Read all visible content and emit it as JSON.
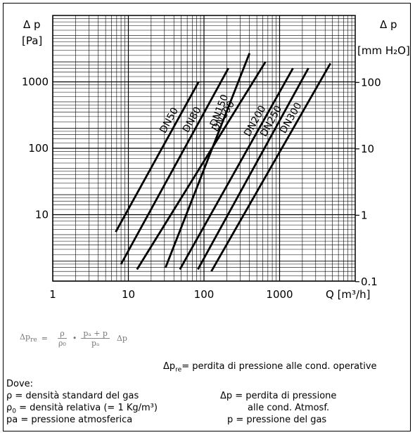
{
  "chart_data": {
    "type": "line",
    "scale": "log-log",
    "grid": true,
    "left_axis": {
      "symbol": "Δ p",
      "unit": "[Pa]",
      "ticks": [
        "10",
        "100",
        "1000"
      ],
      "range": [
        1,
        10000
      ]
    },
    "right_axis": {
      "symbol": "Δ p",
      "unit": "[mm H₂O]",
      "ticks": [
        "0.1",
        "1",
        "10",
        "100"
      ],
      "range": [
        0.1,
        1000
      ]
    },
    "x_axis": {
      "label": "Q [m³/h]",
      "ticks": [
        "1",
        "10",
        "100",
        "1000"
      ],
      "range": [
        1,
        10000
      ]
    },
    "series": [
      {
        "name": "DN50",
        "x": [
          6.8,
          85
        ],
        "y": [
          5.5,
          1000
        ]
      },
      {
        "name": "DN80",
        "x": [
          8,
          210
        ],
        "y": [
          1.8,
          1600
        ]
      },
      {
        "name": "DN100",
        "x": [
          13,
          650
        ],
        "y": [
          1.5,
          2000
        ]
      },
      {
        "name": "DN150",
        "x": [
          31,
          400
        ],
        "y": [
          1.6,
          2700
        ]
      },
      {
        "name": "DN200",
        "x": [
          48,
          1500
        ],
        "y": [
          1.5,
          1600
        ]
      },
      {
        "name": "DN250",
        "x": [
          83,
          2400
        ],
        "y": [
          1.5,
          1600
        ]
      },
      {
        "name": "DN300",
        "x": [
          125,
          4700
        ],
        "y": [
          1.4,
          1900
        ]
      }
    ]
  },
  "formula": {
    "lhs": "Δp",
    "lhs_sub": "re",
    "eq": "=",
    "f1_num": "ρ",
    "f1_den": "ρ₀",
    "op": "•",
    "f2_num": "pₐ + p",
    "f2_den": "pₐ",
    "rhs": "Δp"
  },
  "legend": {
    "dpre_symbol": "Δp",
    "dpre_sub": "re",
    "dpre_text": "= perdita di pressione alle cond. operative",
    "dove": "Dove:",
    "rho": "ρ = densità standard del gas",
    "rho0_symbol": "ρ",
    "rho0_sub": "0",
    "rho0_text": " = densità relativa (= 1 Kg/m³)",
    "pa": "pa = pressione atmosferica",
    "dp1": "Δp = perdita di pressione",
    "dp2": "alle cond. Atmosf.",
    "p": "p = pressione del gas"
  }
}
